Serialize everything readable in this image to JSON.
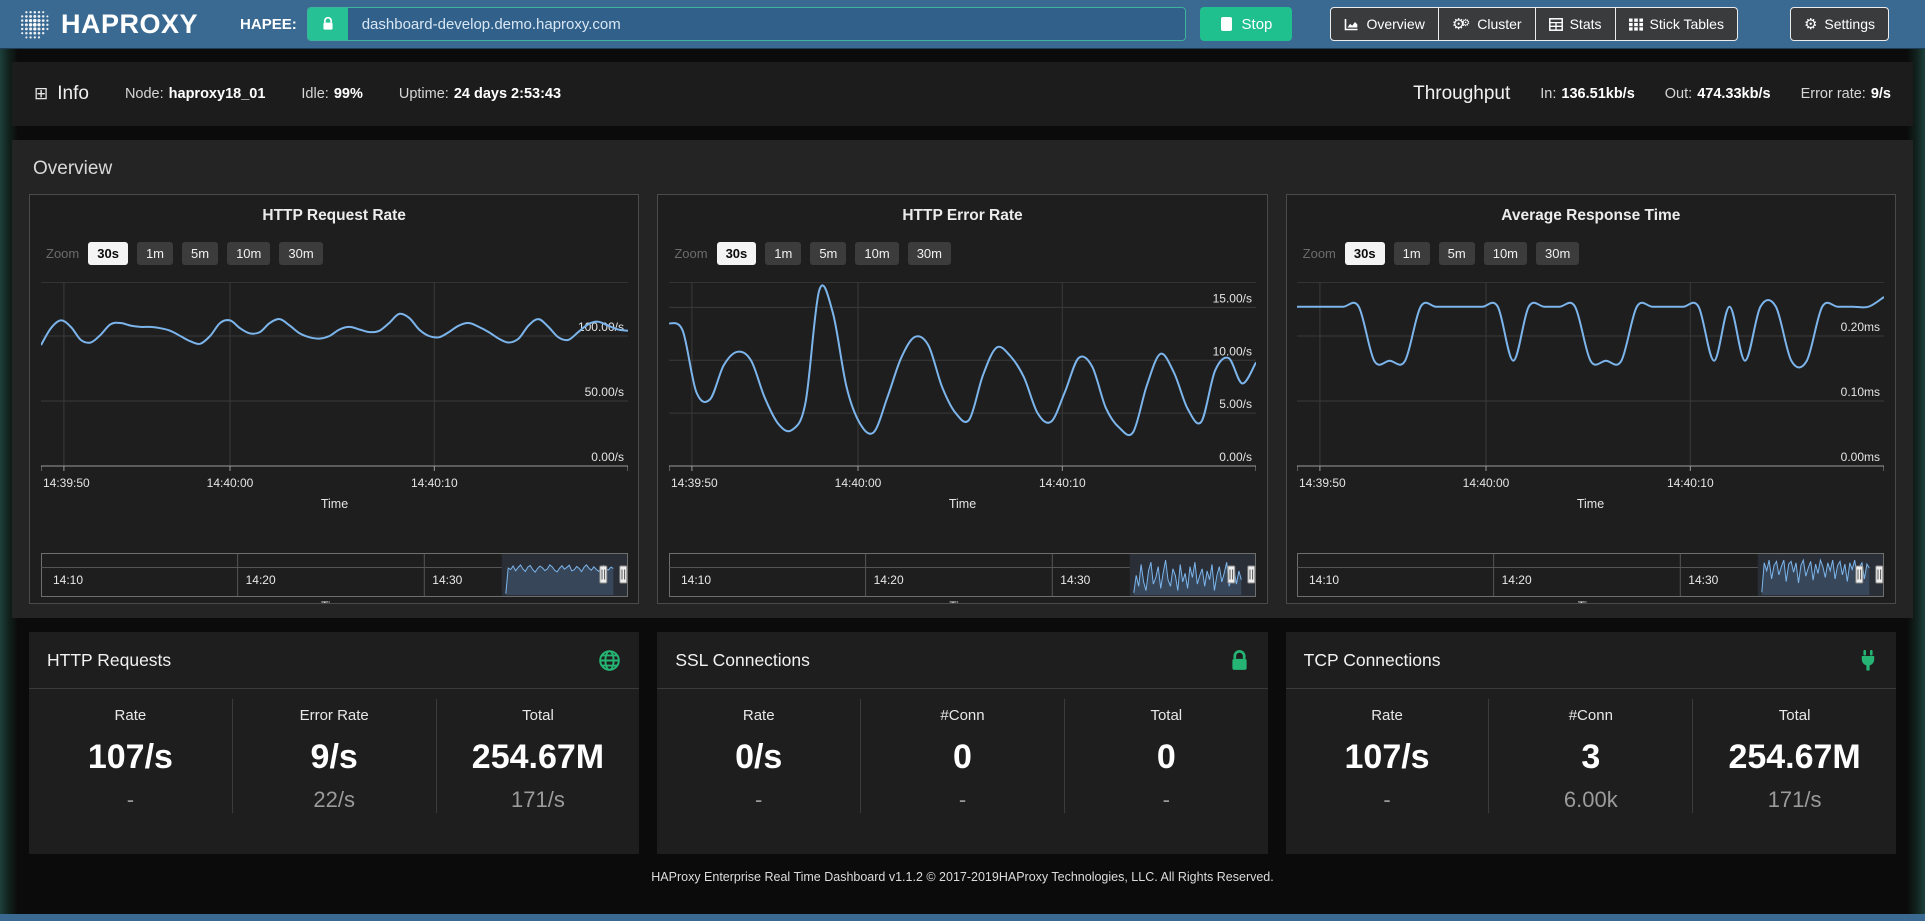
{
  "topbar": {
    "logo_text": "HAPROXY",
    "hapee_label": "HAPEE:",
    "url_value": "dashboard-develop.demo.haproxy.com",
    "stop_label": "Stop",
    "nav_buttons": [
      {
        "label": "Overview",
        "icon": "chart-area-icon"
      },
      {
        "label": "Cluster",
        "icon": "gears-icon"
      },
      {
        "label": "Stats",
        "icon": "table-icon"
      },
      {
        "label": "Stick Tables",
        "icon": "grid-icon"
      }
    ],
    "settings_label": "Settings",
    "colors": {
      "bar_bg": "#3a6a92",
      "green": "#26c295",
      "input_bg": "#31618b"
    }
  },
  "info_bar": {
    "info_label": "Info",
    "items": [
      {
        "label": "Node:",
        "value": "haproxy18_01"
      },
      {
        "label": "Idle:",
        "value": "99%"
      },
      {
        "label": "Uptime:",
        "value": "24 days 2:53:43"
      }
    ],
    "throughput_label": "Throughput",
    "throughput_items": [
      {
        "label": "In:",
        "value": "136.51kb/s"
      },
      {
        "label": "Out:",
        "value": "474.33kb/s"
      },
      {
        "label": "Error rate:",
        "value": "9/s"
      }
    ]
  },
  "overview": {
    "heading": "Overview",
    "zoom_label": "Zoom",
    "zoom_options": [
      "30s",
      "1m",
      "5m",
      "10m",
      "30m"
    ],
    "zoom_selected": "30s"
  },
  "chart_data": [
    {
      "type": "line",
      "title": "HTTP Request Rate",
      "xlabel": "Time",
      "x_ticks": [
        "14:39:50",
        "14:40:00",
        "14:40:10"
      ],
      "y_ticks": [
        {
          "v": 0,
          "label": "0.00/s"
        },
        {
          "v": 50,
          "label": "50.00/s"
        },
        {
          "v": 100,
          "label": "100.00/s"
        }
      ],
      "ylim": [
        0,
        141.5
      ],
      "series": [
        {
          "name": "HTTP Request Rate",
          "color": "#7cb5ec",
          "values": [
            93,
            106,
            112,
            107,
            97,
            95,
            101,
            109,
            110,
            108,
            107,
            107,
            106,
            104,
            100,
            96,
            94,
            100,
            110,
            112,
            106,
            102,
            103,
            110,
            113,
            108,
            102,
            99,
            98,
            100,
            105,
            107,
            105,
            103,
            104,
            110,
            117,
            114,
            105,
            100,
            99,
            103,
            108,
            110,
            107,
            103,
            98,
            95,
            98,
            108,
            113,
            107,
            99,
            97,
            103,
            109,
            111,
            108,
            105,
            104
          ]
        }
      ],
      "navigator": {
        "x_ticks": [
          "14:10",
          "14:20",
          "14:30"
        ],
        "xlabel": "Time",
        "window_start_frac": 0.785,
        "values": [
          5,
          100,
          95,
          108,
          90,
          102,
          112,
          97,
          88,
          104,
          110,
          95,
          85,
          99,
          108,
          101,
          91,
          97,
          112,
          105,
          92,
          86,
          100,
          109,
          96,
          103,
          111,
          90,
          94,
          106,
          99,
          87,
          103,
          112,
          100,
          92,
          105,
          96,
          88,
          101,
          110,
          97,
          93,
          104,
          99
        ]
      }
    },
    {
      "type": "line",
      "title": "HTTP Error Rate",
      "xlabel": "Time",
      "x_ticks": [
        "14:39:50",
        "14:40:00",
        "14:40:10"
      ],
      "y_ticks": [
        {
          "v": 0,
          "label": "0.00/s"
        },
        {
          "v": 5,
          "label": "5.00/s"
        },
        {
          "v": 10,
          "label": "10.00/s"
        },
        {
          "v": 15,
          "label": "15.00/s"
        }
      ],
      "ylim": [
        0,
        17.4
      ],
      "series": [
        {
          "name": "HTTP Error Rate",
          "color": "#7cb5ec",
          "values": [
            13.5,
            12.8,
            7,
            6.3,
            9.5,
            10.8,
            10,
            6.5,
            4,
            3.4,
            6,
            16.6,
            14.5,
            7.5,
            4,
            3.2,
            6.5,
            10.2,
            12.2,
            11.4,
            7.5,
            5,
            4.4,
            8.6,
            11.2,
            10.4,
            8.4,
            5,
            4.2,
            7,
            10.2,
            9.4,
            5.5,
            3.6,
            3.2,
            7.6,
            10.6,
            8.8,
            5.4,
            4.2,
            9,
            10.2,
            7.8,
            9.8
          ]
        }
      ],
      "navigator": {
        "x_ticks": [
          "14:10",
          "14:20",
          "14:30"
        ],
        "xlabel": "Time",
        "window_start_frac": 0.785,
        "values": [
          1,
          9,
          4,
          14,
          6,
          2,
          11,
          15,
          5,
          8,
          13,
          3,
          10,
          16,
          7,
          4,
          12,
          9,
          2,
          14,
          6,
          10,
          3,
          13,
          8,
          15,
          5,
          9,
          12,
          4,
          11,
          7,
          14,
          2,
          9,
          13,
          6,
          10,
          15,
          4,
          8,
          12,
          5,
          11,
          7
        ]
      }
    },
    {
      "type": "line",
      "title": "Average Response Time",
      "xlabel": "Time",
      "x_ticks": [
        "14:39:50",
        "14:40:00",
        "14:40:10"
      ],
      "y_ticks": [
        {
          "v": 0,
          "label": "0.00ms"
        },
        {
          "v": 0.1,
          "label": "0.10ms"
        },
        {
          "v": 0.2,
          "label": "0.20ms"
        }
      ],
      "ylim": [
        0,
        0.283
      ],
      "series": [
        {
          "name": "Average Response Time",
          "color": "#7cb5ec",
          "values": [
            0.245,
            0.245,
            0.245,
            0.245,
            0.245,
            0.162,
            0.162,
            0.162,
            0.245,
            0.245,
            0.245,
            0.245,
            0.245,
            0.245,
            0.162,
            0.245,
            0.245,
            0.245,
            0.245,
            0.162,
            0.162,
            0.162,
            0.245,
            0.245,
            0.245,
            0.245,
            0.245,
            0.162,
            0.245,
            0.162,
            0.245,
            0.245,
            0.162,
            0.162,
            0.245,
            0.245,
            0.245,
            0.245,
            0.26
          ]
        }
      ],
      "navigator": {
        "x_ticks": [
          "14:10",
          "14:20",
          "14:30"
        ],
        "xlabel": "Time",
        "window_start_frac": 0.785,
        "values": [
          0.02,
          0.24,
          0.18,
          0.26,
          0.12,
          0.22,
          0.25,
          0.15,
          0.21,
          0.26,
          0.1,
          0.23,
          0.25,
          0.17,
          0.24,
          0.09,
          0.22,
          0.26,
          0.14,
          0.2,
          0.25,
          0.11,
          0.23,
          0.16,
          0.26,
          0.21,
          0.13,
          0.24,
          0.18,
          0.26,
          0.12,
          0.22,
          0.25,
          0.15,
          0.23,
          0.1,
          0.24,
          0.19,
          0.26,
          0.14,
          0.21,
          0.24,
          0.12,
          0.23,
          0.2
        ]
      }
    }
  ],
  "cards": [
    {
      "title": "HTTP Requests",
      "icon": "globe-icon",
      "columns": [
        {
          "header": "Rate",
          "value": "107/s",
          "sub": "-"
        },
        {
          "header": "Error Rate",
          "value": "9/s",
          "sub": "22/s"
        },
        {
          "header": "Total",
          "value": "254.67M",
          "sub": "171/s"
        }
      ]
    },
    {
      "title": "SSL Connections",
      "icon": "lock-icon",
      "columns": [
        {
          "header": "Rate",
          "value": "0/s",
          "sub": "-"
        },
        {
          "header": "#Conn",
          "value": "0",
          "sub": "-"
        },
        {
          "header": "Total",
          "value": "0",
          "sub": "-"
        }
      ]
    },
    {
      "title": "TCP Connections",
      "icon": "plug-icon",
      "columns": [
        {
          "header": "Rate",
          "value": "107/s",
          "sub": "-"
        },
        {
          "header": "#Conn",
          "value": "3",
          "sub": "6.00k"
        },
        {
          "header": "Total",
          "value": "254.67M",
          "sub": "171/s"
        }
      ]
    }
  ],
  "footer": {
    "text": "HAProxy Enterprise Real Time Dashboard v1.1.2 © 2017-2019HAProxy Technologies, LLC. All Rights Reserved."
  }
}
